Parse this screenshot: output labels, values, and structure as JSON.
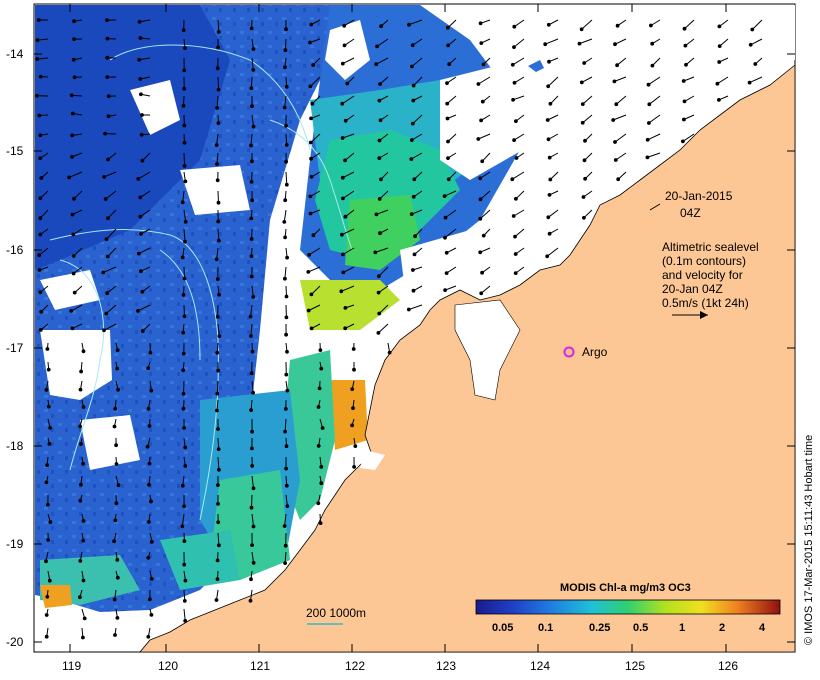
{
  "map": {
    "lat_labels": [
      "-14",
      "-15",
      "-16",
      "-17",
      "-18",
      "-19",
      "-20"
    ],
    "lon_labels": [
      "119",
      "120",
      "121",
      "122",
      "123",
      "124",
      "125",
      "126"
    ],
    "date_line1": "20-Jan-2015",
    "date_line2": "04Z",
    "legend_lines": [
      "Altimetric sealevel",
      "(0.1m contours)",
      "and velocity for",
      "20-Jan 04Z",
      "0.5m/s (1kt 24h)"
    ],
    "marker_label": "Argo",
    "scale_bar_label": "200  1000m",
    "side_credit": "© IMOS 17-Mar-2015 15:11:43 Hobart time",
    "colorbar": {
      "title": "MODIS Chl-a mg/m3 OC3",
      "tick_labels": [
        "0.05",
        "0.1",
        "0.25",
        "0.5",
        "1",
        "2",
        "4"
      ]
    },
    "colors": {
      "land": "#fcc795",
      "cloud": "#ffffff",
      "ocean_deep": "#1c4fc4",
      "marker": "#e020e0"
    }
  }
}
